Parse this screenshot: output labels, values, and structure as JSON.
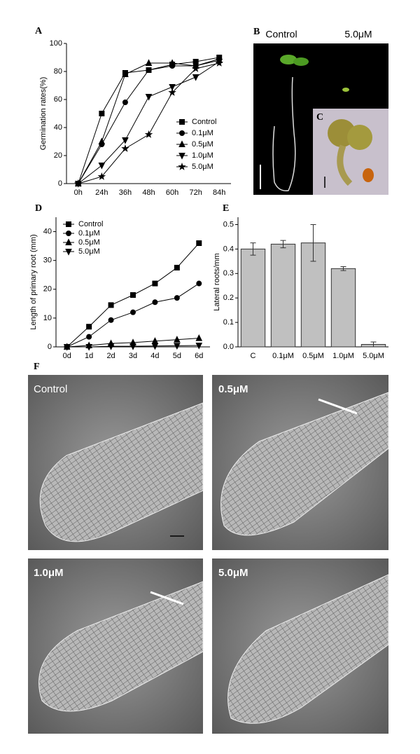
{
  "chart_data": [
    {
      "type": "line",
      "label": "A",
      "ylabel": "Germination rates(%)",
      "categories": [
        "0h",
        "24h",
        "36h",
        "48h",
        "60h",
        "72h",
        "84h"
      ],
      "ylim": [
        0,
        100
      ],
      "yticks": [
        0,
        20,
        40,
        60,
        80,
        100
      ],
      "legend": "center right",
      "series": [
        {
          "name": "Control",
          "marker": "square",
          "color": "#000000",
          "values": [
            0,
            50,
            79,
            81,
            85,
            87,
            90
          ]
        },
        {
          "name": "0.1μM",
          "marker": "circle",
          "color": "#000000",
          "values": [
            0,
            28,
            58,
            81,
            84,
            84,
            89
          ]
        },
        {
          "name": "0.5μM",
          "marker": "triangle-up",
          "color": "#000000",
          "values": [
            0,
            30,
            78,
            86,
            86,
            84,
            88
          ]
        },
        {
          "name": "1.0μM",
          "marker": "triangle-down",
          "color": "#000000",
          "values": [
            0,
            13,
            31,
            62,
            69,
            76,
            87
          ]
        },
        {
          "name": "5.0μM",
          "marker": "star",
          "color": "#000000",
          "values": [
            0,
            5,
            25,
            35,
            65,
            82,
            86
          ]
        }
      ]
    },
    {
      "type": "line",
      "label": "D",
      "ylabel": "Length of primary root (mm)",
      "categories": [
        "0d",
        "1d",
        "2d",
        "3d",
        "4d",
        "5d",
        "6d"
      ],
      "ylim": [
        0,
        45
      ],
      "yticks": [
        0,
        10,
        20,
        30,
        40
      ],
      "legend": "upper left",
      "series": [
        {
          "name": "Control",
          "marker": "square",
          "color": "#000000",
          "values": [
            0,
            7,
            14.5,
            18,
            22,
            27.5,
            36
          ]
        },
        {
          "name": "0.1μM",
          "marker": "circle",
          "color": "#000000",
          "values": [
            0,
            3.5,
            9.3,
            12,
            15.5,
            17,
            22
          ]
        },
        {
          "name": "0.5μM",
          "marker": "triangle-up",
          "color": "#000000",
          "values": [
            0,
            0.5,
            1.2,
            1.5,
            2,
            2.5,
            3
          ]
        },
        {
          "name": "5.0μM",
          "marker": "triangle-down",
          "color": "#000000",
          "values": [
            0,
            0,
            0.2,
            0.2,
            0.3,
            0.4,
            0.5
          ]
        }
      ]
    },
    {
      "type": "bar",
      "label": "E",
      "ylabel": "Lateral roots/mm",
      "categories": [
        "C",
        "0.1μM",
        "0.5μM",
        "1.0μM",
        "5.0μM"
      ],
      "values": [
        0.4,
        0.42,
        0.425,
        0.32,
        0.01
      ],
      "errors": [
        0.025,
        0.015,
        0.075,
        0.008,
        0.01
      ],
      "color": "#c0c0c0",
      "ylim": [
        0,
        0.53
      ],
      "yticks": [
        {
          "value": 0,
          "label": "0.0"
        },
        0.1,
        0.2,
        0.3,
        0.4,
        0.5
      ]
    }
  ],
  "photos": {
    "b_label": "B",
    "b_control": "Control",
    "b_treated": "5.0μM",
    "c_label": "C",
    "f_label": "F",
    "f_panels": [
      "Control",
      "0.5μM",
      "1.0μM",
      "5.0μM"
    ]
  }
}
